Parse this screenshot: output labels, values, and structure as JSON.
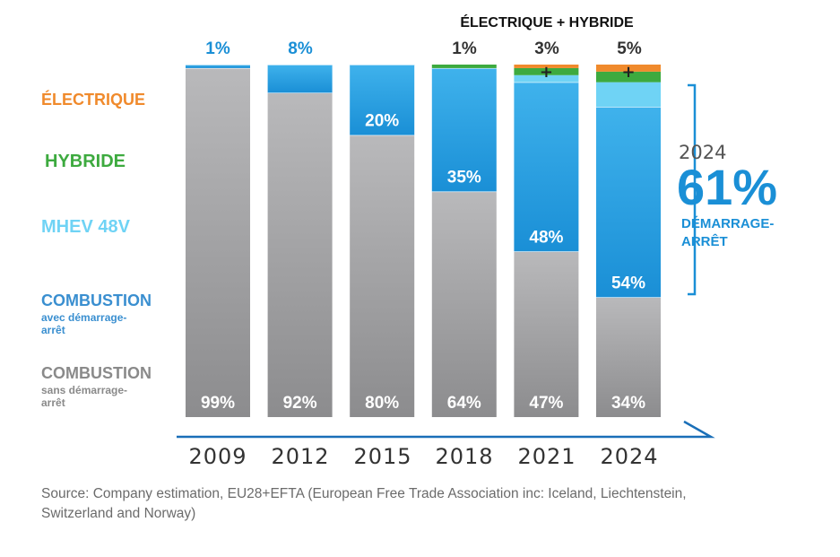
{
  "chart_data": {
    "type": "bar",
    "stacked": true,
    "categories": [
      "2009",
      "2012",
      "2015",
      "2018",
      "2021",
      "2024"
    ],
    "series": [
      {
        "name": "COMBUSTION sans démarrage-arrêt",
        "color": "#9a9a9c",
        "values": [
          99,
          92,
          80,
          64,
          47,
          34
        ]
      },
      {
        "name": "COMBUSTION avec démarrage-arrêt",
        "color": "#1f9be0",
        "values": [
          1,
          8,
          20,
          35,
          48,
          54
        ]
      },
      {
        "name": "MHEV 48V",
        "color": "#6fd3f5",
        "values": [
          0,
          0,
          0,
          0,
          2,
          7
        ]
      },
      {
        "name": "HYBRIDE",
        "color": "#3daa3f",
        "values": [
          0,
          0,
          0,
          1,
          2,
          3
        ]
      },
      {
        "name": "ÉLECTRIQUE",
        "color": "#f08a2c",
        "values": [
          0,
          0,
          0,
          0,
          1,
          2
        ]
      }
    ],
    "segment_labels": {
      "combustion_sans": [
        "99%",
        "92%",
        "80%",
        "64%",
        "47%",
        "34%"
      ],
      "combustion_avec": [
        "",
        "",
        "20%",
        "35%",
        "48%",
        "54%"
      ]
    },
    "top_labels": [
      "1%",
      "8%",
      "1%",
      "3%",
      "5%"
    ],
    "top_label_group_header": "ÉLECTRIQUE + HYBRIDE",
    "ylim": [
      0,
      100
    ],
    "legend_placement": "left"
  },
  "legend": {
    "electrique": {
      "label": "ÉLECTRIQUE",
      "color": "#f08a2c"
    },
    "hybride": {
      "label": "HYBRIDE",
      "color": "#3daa3f"
    },
    "mhev": {
      "label": "MHEV 48V",
      "color": "#6fd3f5"
    },
    "combustion_avec": {
      "label": "COMBUSTION",
      "sub": "avec démarrage-arrêt",
      "color": "#3a8fd0"
    },
    "combustion_sans": {
      "label": "COMBUSTION",
      "sub": "sans démarrage-arrêt",
      "color": "#8a8a8a"
    }
  },
  "callout": {
    "year": "2024",
    "value": "61%",
    "label": "DÉMARRAGE-ARRÊT"
  },
  "top_pct_colors": {
    "combustion_avec": "#1a8fd6",
    "hybrid_electric": "#333333"
  },
  "plus_symbol": "+",
  "source": "Source: Company estimation,  EU28+EFTA (European Free Trade Association inc: Iceland, Liechtenstein, Switzerland and Norway)"
}
